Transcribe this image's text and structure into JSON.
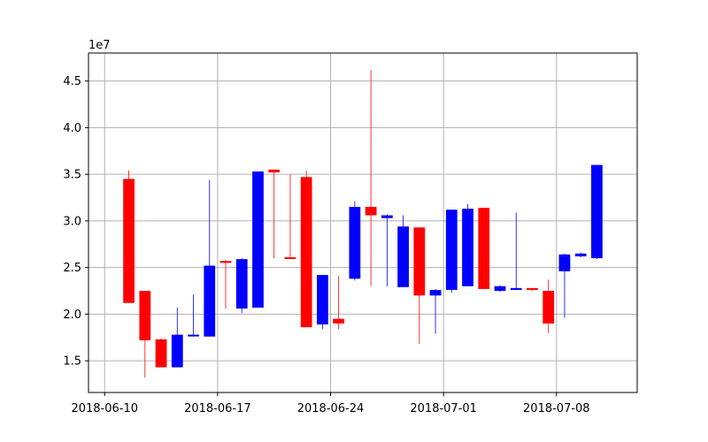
{
  "chart_data": {
    "type": "candlestick",
    "title": "",
    "xlabel": "",
    "ylabel": "",
    "y_scale_label": "1e7",
    "y_multiplier": 10000000,
    "ylim": [
      11600000,
      48000000
    ],
    "xlim": [
      "2018-06-09T00:00",
      "2018-07-13T00:00"
    ],
    "yticks": [
      15000000,
      20000000,
      25000000,
      30000000,
      35000000,
      40000000,
      45000000
    ],
    "ytick_labels": [
      "1.5",
      "2.0",
      "2.5",
      "3.0",
      "3.5",
      "4.0",
      "4.5"
    ],
    "xticks": [
      "2018-06-10",
      "2018-06-17",
      "2018-06-24",
      "2018-07-01",
      "2018-07-08"
    ],
    "xtick_labels": [
      "2018-06-10",
      "2018-06-17",
      "2018-06-24",
      "2018-07-01",
      "2018-07-08"
    ],
    "grid": true,
    "colors": {
      "up": "#0000ff",
      "down": "#ff0000",
      "grid": "#b0b0b0"
    },
    "candles": [
      {
        "date": "2018-06-11",
        "open": 34500000,
        "high": 35400000,
        "low": 21200000,
        "close": 21200000
      },
      {
        "date": "2018-06-12",
        "open": 22500000,
        "high": 22500000,
        "low": 13200000,
        "close": 17200000
      },
      {
        "date": "2018-06-13",
        "open": 17300000,
        "high": 17400000,
        "low": 14300000,
        "close": 14300000
      },
      {
        "date": "2018-06-14",
        "open": 14300000,
        "high": 20700000,
        "low": 14300000,
        "close": 17800000
      },
      {
        "date": "2018-06-15",
        "open": 17700000,
        "high": 22100000,
        "low": 17600000,
        "close": 17800000
      },
      {
        "date": "2018-06-16",
        "open": 17600000,
        "high": 34400000,
        "low": 17600000,
        "close": 25200000
      },
      {
        "date": "2018-06-17",
        "open": 25700000,
        "high": 25800000,
        "low": 20600000,
        "close": 25500000
      },
      {
        "date": "2018-06-18",
        "open": 20600000,
        "high": 26000000,
        "low": 20100000,
        "close": 25900000
      },
      {
        "date": "2018-06-19",
        "open": 20700000,
        "high": 35300000,
        "low": 20700000,
        "close": 35300000
      },
      {
        "date": "2018-06-20",
        "open": 35500000,
        "high": 35500000,
        "low": 26000000,
        "close": 35200000
      },
      {
        "date": "2018-06-21",
        "open": 26100000,
        "high": 35000000,
        "low": 26000000,
        "close": 26000000
      },
      {
        "date": "2018-06-22",
        "open": 34700000,
        "high": 35400000,
        "low": 18600000,
        "close": 18600000
      },
      {
        "date": "2018-06-23",
        "open": 18900000,
        "high": 24200000,
        "low": 18400000,
        "close": 24200000
      },
      {
        "date": "2018-06-24",
        "open": 19500000,
        "high": 24100000,
        "low": 18400000,
        "close": 19000000
      },
      {
        "date": "2018-06-25",
        "open": 23800000,
        "high": 32100000,
        "low": 23600000,
        "close": 31500000
      },
      {
        "date": "2018-06-26",
        "open": 31500000,
        "high": 46200000,
        "low": 23000000,
        "close": 30600000
      },
      {
        "date": "2018-06-27",
        "open": 30300000,
        "high": 30700000,
        "low": 23000000,
        "close": 30600000
      },
      {
        "date": "2018-06-28",
        "open": 22900000,
        "high": 30600000,
        "low": 22900000,
        "close": 29400000
      },
      {
        "date": "2018-06-29",
        "open": 29300000,
        "high": 29300000,
        "low": 16800000,
        "close": 22000000
      },
      {
        "date": "2018-06-30",
        "open": 22000000,
        "high": 22700000,
        "low": 17900000,
        "close": 22600000
      },
      {
        "date": "2018-07-01",
        "open": 22600000,
        "high": 31200000,
        "low": 22300000,
        "close": 31200000
      },
      {
        "date": "2018-07-02",
        "open": 23000000,
        "high": 31800000,
        "low": 23000000,
        "close": 31300000
      },
      {
        "date": "2018-07-03",
        "open": 31400000,
        "high": 31400000,
        "low": 22700000,
        "close": 22700000
      },
      {
        "date": "2018-07-04",
        "open": 22500000,
        "high": 23100000,
        "low": 22400000,
        "close": 23000000
      },
      {
        "date": "2018-07-05",
        "open": 22600000,
        "high": 30900000,
        "low": 22600000,
        "close": 22800000
      },
      {
        "date": "2018-07-06",
        "open": 22800000,
        "high": 22800000,
        "low": 22500000,
        "close": 22600000
      },
      {
        "date": "2018-07-07",
        "open": 22500000,
        "high": 23700000,
        "low": 18000000,
        "close": 19000000
      },
      {
        "date": "2018-07-08",
        "open": 24600000,
        "high": 26500000,
        "low": 19600000,
        "close": 26400000
      },
      {
        "date": "2018-07-09",
        "open": 26200000,
        "high": 26600000,
        "low": 26100000,
        "close": 26500000
      },
      {
        "date": "2018-07-10",
        "open": 26000000,
        "high": 36000000,
        "low": 25900000,
        "close": 36000000
      }
    ]
  }
}
